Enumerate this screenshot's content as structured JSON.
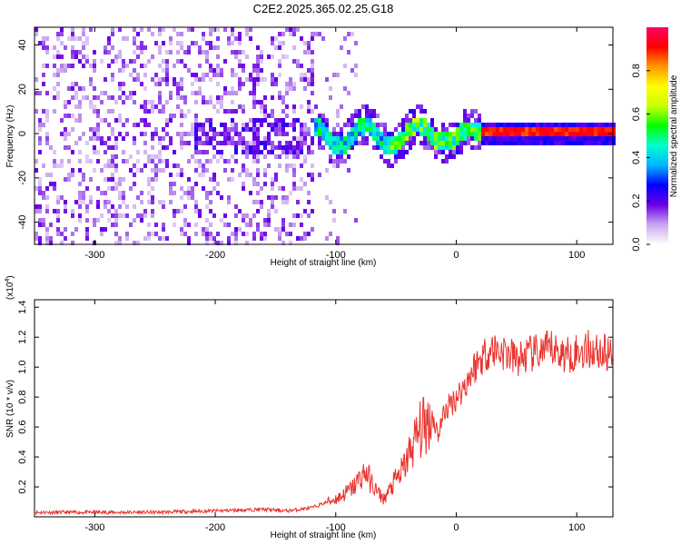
{
  "chart_data": [
    {
      "type": "heatmap",
      "title": "C2E2.2025.365.02.25.G18",
      "xlabel": "Height of straight line (km)",
      "ylabel": "Frequency (Hz)",
      "xlim": [
        -350,
        130
      ],
      "ylim": [
        -50,
        48
      ],
      "xticks": [
        -300,
        -200,
        -100,
        0,
        100
      ],
      "yticks": [
        -40,
        -20,
        0,
        20,
        40
      ],
      "colorbar": {
        "label": "Normalized spectral amplitude",
        "range": [
          0.0,
          1.0
        ],
        "ticks": [
          0.0,
          0.2,
          0.4,
          0.6,
          0.8
        ],
        "colors": [
          "#ffffff",
          "#c9a6f0",
          "#6b00e6",
          "#0000ff",
          "#00b4ff",
          "#00ffd0",
          "#00ff00",
          "#c8ff00",
          "#ffff00",
          "#ff9900",
          "#ff0000",
          "#ff0066"
        ]
      },
      "description_regions": [
        {
          "x_range": [
            -350,
            -120
          ],
          "freq_range": [
            -50,
            48
          ],
          "amplitude": "low, scattered (violet speckle)"
        },
        {
          "x_range": [
            -120,
            20
          ],
          "freq_center": 0,
          "amplitude": "medium, oscillating band (blue to green)"
        },
        {
          "x_range": [
            20,
            130
          ],
          "freq_center": 0,
          "amplitude": "high, narrow band (red/orange)"
        }
      ]
    },
    {
      "type": "line",
      "xlabel": "Height of straight line (km)",
      "ylabel": "SNR (10 * v/v)",
      "yscale_label": "(x10",
      "yscale_exp": "4",
      "xlim": [
        -350,
        130
      ],
      "ylim": [
        0,
        1.45
      ],
      "xticks": [
        -300,
        -200,
        -100,
        0,
        100
      ],
      "yticks": [
        0.2,
        0.4,
        0.6,
        0.8,
        1.0,
        1.2,
        1.4
      ],
      "ytick_labels": [
        "0.2",
        "0.4",
        "0.6",
        "0.8",
        "1.0",
        "1.2",
        "1.4"
      ],
      "color": "#e8322d",
      "series": [
        {
          "name": "SNR",
          "x": [
            -350,
            -300,
            -250,
            -200,
            -160,
            -140,
            -120,
            -110,
            -100,
            -95,
            -90,
            -85,
            -80,
            -75,
            -70,
            -65,
            -60,
            -55,
            -50,
            -45,
            -40,
            -35,
            -30,
            -25,
            -20,
            -15,
            -10,
            -5,
            0,
            5,
            10,
            15,
            20,
            25,
            30,
            40,
            50,
            60,
            70,
            80,
            90,
            100,
            110,
            120,
            130
          ],
          "y": [
            0.03,
            0.03,
            0.03,
            0.04,
            0.05,
            0.04,
            0.06,
            0.09,
            0.12,
            0.14,
            0.17,
            0.2,
            0.26,
            0.3,
            0.22,
            0.16,
            0.12,
            0.18,
            0.25,
            0.3,
            0.4,
            0.5,
            0.58,
            0.62,
            0.68,
            0.55,
            0.7,
            0.75,
            0.8,
            0.85,
            0.92,
            1.0,
            1.05,
            1.1,
            1.12,
            1.1,
            1.05,
            1.08,
            1.1,
            1.12,
            1.08,
            1.1,
            1.12,
            1.1,
            1.08
          ]
        }
      ]
    }
  ]
}
